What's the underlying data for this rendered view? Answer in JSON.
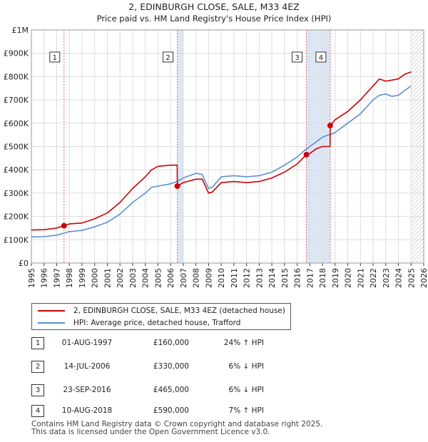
{
  "chart_data": {
    "type": "line",
    "title": "2, EDINBURGH CLOSE, SALE, M33 4EZ",
    "subtitle": "Price paid vs. HM Land Registry's House Price Index (HPI)",
    "xlim": [
      1995,
      2026
    ],
    "ylim": [
      0,
      1000000
    ],
    "y_ticks": [
      {
        "value": 0,
        "label": "£0"
      },
      {
        "value": 100000,
        "label": "£100K"
      },
      {
        "value": 200000,
        "label": "£200K"
      },
      {
        "value": 300000,
        "label": "£300K"
      },
      {
        "value": 400000,
        "label": "£400K"
      },
      {
        "value": 500000,
        "label": "£500K"
      },
      {
        "value": 600000,
        "label": "£600K"
      },
      {
        "value": 700000,
        "label": "£700K"
      },
      {
        "value": 800000,
        "label": "£800K"
      },
      {
        "value": 900000,
        "label": "£900K"
      },
      {
        "value": 1000000,
        "label": "£1M"
      }
    ],
    "x_ticks": [
      "1995",
      "1996",
      "1997",
      "1998",
      "1999",
      "2000",
      "2001",
      "2002",
      "2003",
      "2004",
      "2005",
      "2006",
      "2007",
      "2008",
      "2009",
      "2010",
      "2011",
      "2012",
      "2013",
      "2014",
      "2015",
      "2016",
      "2017",
      "2018",
      "2019",
      "2020",
      "2021",
      "2022",
      "2023",
      "2024",
      "2025",
      "2026"
    ],
    "series": [
      {
        "name": "2, EDINBURGH CLOSE, SALE, M33 4EZ (detached house)",
        "color": "#cc0000",
        "x": [
          1995.0,
          1996.0,
          1997.0,
          1997.58,
          1998.0,
          1999.0,
          2000.0,
          2001.0,
          2002.0,
          2003.0,
          2004.0,
          2004.5,
          2005.0,
          2006.0,
          2006.52,
          2006.53,
          2007.0,
          2008.0,
          2008.5,
          2009.0,
          2009.3,
          2010.0,
          2011.0,
          2012.0,
          2013.0,
          2014.0,
          2015.0,
          2016.0,
          2016.73,
          2017.0,
          2017.5,
          2018.0,
          2018.5,
          2018.6,
          2018.61,
          2019.0,
          2020.0,
          2021.0,
          2022.0,
          2022.5,
          2023.0,
          2023.5,
          2024.0,
          2024.5,
          2025.0
        ],
        "values": [
          142000,
          143000,
          150000,
          160000,
          168000,
          172000,
          190000,
          215000,
          260000,
          320000,
          370000,
          400000,
          415000,
          420000,
          420000,
          330000,
          345000,
          360000,
          360000,
          300000,
          305000,
          345000,
          350000,
          345000,
          350000,
          365000,
          390000,
          425000,
          465000,
          470000,
          490000,
          500000,
          500000,
          500000,
          590000,
          615000,
          650000,
          700000,
          760000,
          790000,
          780000,
          785000,
          790000,
          810000,
          820000
        ]
      },
      {
        "name": "HPI: Average price, detached house, Trafford",
        "color": "#5b8fd1",
        "x": [
          1995.0,
          1996.0,
          1997.0,
          1997.58,
          1998.0,
          1999.0,
          2000.0,
          2001.0,
          2002.0,
          2003.0,
          2004.0,
          2004.5,
          2005.0,
          2006.0,
          2006.52,
          2007.0,
          2008.0,
          2008.5,
          2009.0,
          2009.3,
          2010.0,
          2011.0,
          2012.0,
          2013.0,
          2014.0,
          2015.0,
          2016.0,
          2016.73,
          2017.0,
          2017.5,
          2018.0,
          2018.5,
          2018.6,
          2019.0,
          2020.0,
          2021.0,
          2022.0,
          2022.5,
          2023.0,
          2023.5,
          2024.0,
          2024.5,
          2025.0
        ],
        "values": [
          112000,
          113000,
          120000,
          128000,
          135000,
          140000,
          155000,
          175000,
          210000,
          260000,
          300000,
          325000,
          330000,
          340000,
          350000,
          365000,
          385000,
          380000,
          320000,
          325000,
          370000,
          375000,
          370000,
          375000,
          390000,
          420000,
          455000,
          490000,
          500000,
          520000,
          540000,
          550000,
          550000,
          560000,
          600000,
          640000,
          700000,
          720000,
          725000,
          715000,
          720000,
          740000,
          760000
        ]
      }
    ],
    "sales": [
      {
        "label": "1",
        "year": 1997.58,
        "price": 160000,
        "date": "01-AUG-1997",
        "price_text": "£160,000",
        "hpi_text": "24% ↑ HPI"
      },
      {
        "label": "2",
        "year": 2006.53,
        "price": 330000,
        "date": "14-JUL-2006",
        "price_text": "£330,000",
        "hpi_text": "6% ↓ HPI"
      },
      {
        "label": "3",
        "year": 2016.73,
        "price": 465000,
        "date": "23-SEP-2016",
        "price_text": "£465,000",
        "hpi_text": "6% ↓ HPI"
      },
      {
        "label": "4",
        "year": 2018.61,
        "price": 590000,
        "date": "10-AUG-2018",
        "price_text": "£590,000",
        "hpi_text": "7% ↑ HPI"
      }
    ],
    "shaded_periods": [
      [
        2006.53,
        2007.0
      ],
      [
        2016.73,
        2018.61
      ]
    ],
    "hatch_from": 2025.0
  },
  "legend": {
    "property_label": "2, EDINBURGH CLOSE, SALE, M33 4EZ (detached house)",
    "hpi_label": "HPI: Average price, detached house, Trafford",
    "property_color": "#cc0000",
    "hpi_color": "#5b8fd1"
  },
  "footer": {
    "line1": "Contains HM Land Registry data © Crown copyright and database right 2025.",
    "line2": "This data is licensed under the Open Government Licence v3.0."
  }
}
